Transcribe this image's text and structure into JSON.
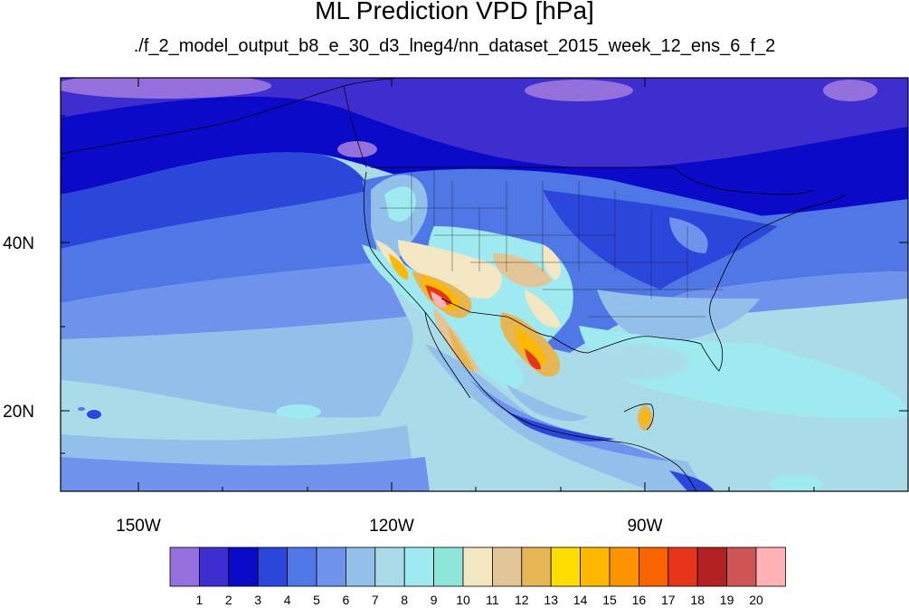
{
  "title": "ML Prediction VPD [hPa]",
  "subtitle": "./f_2_model_output_b8_e_30_d3_lneg4/nn_dataset_2015_week_12_ens_6_f_2",
  "axes": {
    "lon_labels": [
      "150W",
      "120W",
      "90W"
    ],
    "lat_labels": [
      "40N",
      "20N"
    ]
  },
  "colorbar": {
    "labels": [
      "1",
      "2",
      "3",
      "4",
      "5",
      "6",
      "7",
      "8",
      "9",
      "10",
      "11",
      "12",
      "13",
      "14",
      "15",
      "16",
      "17",
      "18",
      "19",
      "20"
    ],
    "colors": [
      "#9370db",
      "#3e2ecf",
      "#0a0ac8",
      "#2b46db",
      "#4f78e6",
      "#6f92ec",
      "#93bfeb",
      "#a9dce8",
      "#9fe9f0",
      "#8fe6d8",
      "#f3e6c2",
      "#e2c596",
      "#e6b655",
      "#fedd00",
      "#fdb800",
      "#fb9400",
      "#f86500",
      "#e7351a",
      "#b22222",
      "#cd5555",
      "#ffb1b5"
    ]
  },
  "chart_data": {
    "type": "heatmap",
    "title": "ML Prediction VPD [hPa]",
    "subtitle": "./f_2_model_output_b8_e_30_d3_lneg4/nn_dataset_2015_week_12_ens_6_f_2",
    "variable": "VPD",
    "units": "hPa",
    "lon_range": [
      -160,
      -60
    ],
    "lat_range": [
      10,
      59
    ],
    "lon_ticks": [
      -150,
      -120,
      -90
    ],
    "lat_ticks": [
      20,
      40
    ],
    "color_levels": [
      1,
      2,
      3,
      4,
      5,
      6,
      7,
      8,
      9,
      10,
      11,
      12,
      13,
      14,
      15,
      16,
      17,
      18,
      19,
      20
    ]
  }
}
